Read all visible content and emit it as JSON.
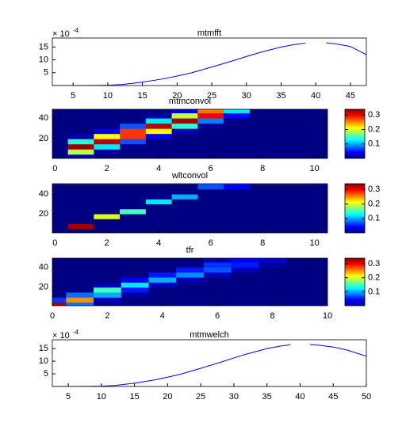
{
  "chart_data": [
    {
      "type": "line",
      "title": "mtmfft",
      "y_scale_label": "× 10",
      "y_scale_exponent": "-4",
      "color": "#0000ff",
      "x": [
        2,
        5,
        8,
        10,
        12,
        15,
        18,
        20,
        22,
        25,
        28,
        30,
        32,
        35,
        37,
        38.5,
        40,
        41.5,
        43,
        45,
        47.3
      ],
      "values": [
        0,
        0,
        0.05,
        0.1,
        0.4,
        1.3,
        2.6,
        3.7,
        4.9,
        7.2,
        9.6,
        11.3,
        12.9,
        15,
        16,
        16.5,
        null,
        16.6,
        16.2,
        15.2,
        12
      ],
      "xlim": [
        2,
        47.3
      ],
      "ylim": [
        0,
        18.5
      ],
      "xticks": [
        5,
        10,
        15,
        20,
        25,
        30,
        35,
        40,
        45
      ],
      "yticks": [
        5,
        10,
        15
      ]
    },
    {
      "type": "heatmap",
      "title": "mtmconvol",
      "colormap": "jet",
      "x": [
        0,
        1,
        2,
        3,
        4,
        5,
        6,
        7,
        8,
        9,
        10
      ],
      "y": [
        2.5,
        7.5,
        12.5,
        17.5,
        22.5,
        27.5,
        32.5,
        37.5,
        42.5,
        47.5
      ],
      "z": [
        [
          0,
          0.027,
          0,
          0,
          0,
          0,
          0,
          0,
          0,
          0,
          0
        ],
        [
          0,
          0.19,
          0.01,
          0,
          0,
          0,
          0,
          0,
          0,
          0,
          0
        ],
        [
          0,
          0.33,
          0.12,
          0.004,
          0,
          0,
          0,
          0,
          0,
          0,
          0
        ],
        [
          0,
          0.14,
          0.32,
          0.07,
          0,
          0,
          0,
          0,
          0,
          0,
          0
        ],
        [
          0,
          0.015,
          0.21,
          0.28,
          0.035,
          0,
          0,
          0,
          0,
          0,
          0
        ],
        [
          0,
          0,
          0.035,
          0.28,
          0.21,
          0.015,
          0,
          0,
          0,
          0,
          0
        ],
        [
          0,
          0,
          0,
          0.07,
          0.32,
          0.14,
          0.006,
          0,
          0,
          0,
          0
        ],
        [
          0,
          0,
          0,
          0,
          0.12,
          0.33,
          0.085,
          0.002,
          0,
          0,
          0
        ],
        [
          0,
          0,
          0,
          0,
          0.01,
          0.19,
          0.3,
          0.045,
          0,
          0,
          0
        ],
        [
          0,
          0,
          0,
          0,
          0,
          0.027,
          0.26,
          0.12,
          0,
          0,
          0
        ]
      ],
      "xlim": [
        -0.1,
        10.5
      ],
      "ylim": [
        1,
        48.5
      ],
      "xticks": [
        0,
        2,
        4,
        6,
        8,
        10
      ],
      "yticks": [
        20,
        40
      ],
      "clim": [
        0,
        0.34
      ],
      "colorbar_ticks": [
        0.1,
        0.2,
        0.3
      ]
    },
    {
      "type": "heatmap",
      "title": "wltconvol",
      "colormap": "jet",
      "x": [
        0,
        1,
        2,
        3,
        4,
        5,
        6,
        7,
        8,
        9,
        10
      ],
      "y": [
        2.5,
        7.5,
        12.5,
        17.5,
        22.5,
        27.5,
        32.5,
        37.5,
        42.5,
        47.5
      ],
      "z": [
        [
          0,
          0,
          0,
          0,
          0,
          0,
          0,
          0,
          0,
          0,
          0
        ],
        [
          0,
          0.33,
          0,
          0,
          0,
          0,
          0,
          0,
          0,
          0,
          0
        ],
        [
          0,
          0,
          0,
          0,
          0,
          0,
          0,
          0,
          0,
          0,
          0
        ],
        [
          0,
          0,
          0.2,
          0,
          0,
          0,
          0,
          0,
          0,
          0,
          0
        ],
        [
          0,
          0,
          0,
          0.15,
          0,
          0,
          0,
          0,
          0,
          0,
          0
        ],
        [
          0,
          0,
          0,
          0,
          0,
          0,
          0,
          0,
          0,
          0,
          0
        ],
        [
          0,
          0,
          0,
          0,
          0.12,
          0,
          0,
          0,
          0,
          0,
          0
        ],
        [
          0,
          0,
          0,
          0,
          0,
          0.1,
          0,
          0,
          0,
          0,
          0
        ],
        [
          0,
          0,
          0,
          0,
          0,
          0,
          0,
          0,
          0,
          0,
          0
        ],
        [
          0,
          0,
          0,
          0,
          0,
          0,
          0.07,
          0.04,
          0,
          0,
          0
        ]
      ],
      "xlim": [
        -0.1,
        10.5
      ],
      "ylim": [
        0.8,
        50.4
      ],
      "xticks": [
        0,
        2,
        4,
        6,
        8,
        10
      ],
      "yticks": [
        20,
        40
      ],
      "clim": [
        0,
        0.34
      ],
      "colorbar_ticks": [
        0.1,
        0.2,
        0.3
      ]
    },
    {
      "type": "heatmap",
      "title": "tfr",
      "colormap": "jet",
      "x": [
        0,
        1,
        2,
        3,
        4,
        5,
        6,
        7,
        8,
        9,
        10
      ],
      "y": [
        2.5,
        7.5,
        12.5,
        17.5,
        22.5,
        27.5,
        32.5,
        37.5,
        42.5,
        47.5
      ],
      "z": [
        [
          0.33,
          0.08,
          0,
          0,
          0,
          0,
          0,
          0,
          0,
          0,
          0
        ],
        [
          0.06,
          0.25,
          0.02,
          0,
          0,
          0,
          0,
          0,
          0,
          0,
          0
        ],
        [
          0,
          0.08,
          0.1,
          0.01,
          0,
          0,
          0,
          0,
          0,
          0,
          0
        ],
        [
          0,
          0,
          0.15,
          0.05,
          0,
          0,
          0,
          0,
          0,
          0,
          0
        ],
        [
          0,
          0,
          0.02,
          0.12,
          0.02,
          0,
          0,
          0,
          0,
          0,
          0
        ],
        [
          0,
          0,
          0,
          0.04,
          0.1,
          0.02,
          0,
          0,
          0,
          0,
          0
        ],
        [
          0,
          0,
          0,
          0,
          0.05,
          0.09,
          0.02,
          0,
          0,
          0,
          0
        ],
        [
          0,
          0,
          0,
          0,
          0,
          0.05,
          0.07,
          0.02,
          0,
          0,
          0
        ],
        [
          0,
          0,
          0,
          0,
          0,
          0,
          0.06,
          0.05,
          0.01,
          0,
          0
        ],
        [
          0,
          0,
          0,
          0,
          0,
          0,
          0.02,
          0.04,
          0.03,
          0,
          0
        ]
      ],
      "xlim": [
        0,
        10
      ],
      "ylim": [
        1.5,
        49
      ],
      "xticks": [
        0,
        2,
        4,
        6,
        8,
        10
      ],
      "yticks": [
        20,
        40
      ],
      "clim": [
        0,
        0.34
      ],
      "colorbar_ticks": [
        0.1,
        0.2,
        0.3
      ]
    },
    {
      "type": "line",
      "title": "mtmwelch",
      "y_scale_label": "× 10",
      "y_scale_exponent": "-4",
      "color": "#0000ff",
      "x": [
        2.6,
        5,
        8,
        10,
        12,
        15,
        18,
        20,
        22,
        25,
        28,
        30,
        32,
        35,
        37,
        38.5,
        40,
        41.5,
        43,
        45,
        47,
        50
      ],
      "values": [
        0,
        0,
        0.05,
        0.1,
        0.4,
        1.3,
        2.6,
        3.7,
        4.9,
        7.2,
        9.6,
        11.3,
        12.9,
        15,
        16,
        16.5,
        null,
        16.6,
        16.3,
        15.6,
        14.5,
        12
      ],
      "xlim": [
        2.6,
        50
      ],
      "ylim": [
        0,
        18.5
      ],
      "xticks": [
        5,
        10,
        15,
        20,
        25,
        30,
        35,
        40,
        45,
        50
      ],
      "yticks": [
        5,
        10,
        15
      ]
    }
  ]
}
